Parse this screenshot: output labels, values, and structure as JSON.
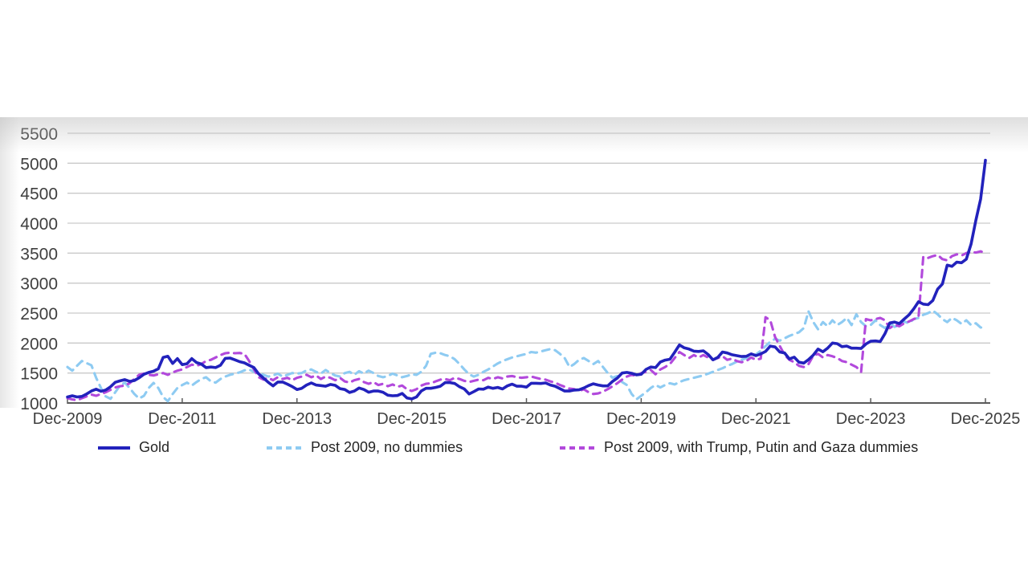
{
  "chart_data": {
    "type": "line",
    "title": "",
    "grid": "horizontal",
    "x_axis": {
      "start_label": "Dec-2009",
      "end_label": "Dec-2025",
      "frequency": "monthly",
      "tick_every_months": 24,
      "tick_labels": [
        "Dec-2009",
        "Dec-2011",
        "Dec-2013",
        "Dec-2015",
        "Dec-2017",
        "Dec-2019",
        "Dec-2021",
        "Dec-2023",
        "Dec-2025"
      ]
    },
    "y_axis": {
      "min": 1000,
      "max": 5500,
      "step": 500,
      "tick_labels": [
        "1000",
        "1500",
        "2000",
        "2500",
        "3000",
        "3500",
        "4000",
        "4500",
        "5000",
        "5500"
      ]
    },
    "legend": {
      "position": "bottom"
    },
    "series": [
      {
        "name": "Gold",
        "style": "solid",
        "color": "#2222BC",
        "values": [
          1100,
          1120,
          1100,
          1110,
          1150,
          1200,
          1230,
          1195,
          1215,
          1270,
          1345,
          1370,
          1390,
          1360,
          1375,
          1420,
          1480,
          1510,
          1530,
          1570,
          1760,
          1780,
          1660,
          1740,
          1640,
          1655,
          1740,
          1675,
          1650,
          1590,
          1600,
          1590,
          1630,
          1745,
          1750,
          1720,
          1690,
          1670,
          1630,
          1590,
          1485,
          1415,
          1345,
          1285,
          1350,
          1350,
          1315,
          1275,
          1225,
          1245,
          1300,
          1335,
          1300,
          1290,
          1280,
          1310,
          1295,
          1240,
          1225,
          1175,
          1200,
          1250,
          1225,
          1180,
          1200,
          1200,
          1180,
          1130,
          1120,
          1125,
          1160,
          1085,
          1068,
          1100,
          1200,
          1245,
          1245,
          1260,
          1280,
          1340,
          1340,
          1325,
          1270,
          1235,
          1150,
          1190,
          1235,
          1230,
          1265,
          1245,
          1260,
          1235,
          1285,
          1315,
          1280,
          1280,
          1265,
          1330,
          1330,
          1325,
          1335,
          1300,
          1280,
          1240,
          1200,
          1200,
          1215,
          1220,
          1250,
          1290,
          1320,
          1300,
          1285,
          1285,
          1360,
          1415,
          1500,
          1510,
          1495,
          1470,
          1480,
          1560,
          1600,
          1590,
          1685,
          1715,
          1730,
          1845,
          1970,
          1920,
          1900,
          1865,
          1860,
          1870,
          1810,
          1720,
          1760,
          1850,
          1835,
          1805,
          1790,
          1775,
          1780,
          1820,
          1790,
          1820,
          1860,
          1950,
          1935,
          1850,
          1835,
          1735,
          1765,
          1680,
          1665,
          1725,
          1800,
          1900,
          1855,
          1915,
          2000,
          1990,
          1940,
          1950,
          1915,
          1915,
          1910,
          1985,
          2030,
          2035,
          2025,
          2160,
          2335,
          2350,
          2325,
          2400,
          2470,
          2570,
          2690,
          2650,
          2640,
          2710,
          2900,
          2985,
          3300,
          3280,
          3350,
          3340,
          3400,
          3650,
          4050,
          4400,
          5050
        ]
      },
      {
        "name": "Post 2009, no dummies",
        "style": "dashed",
        "color": "#8ECBF2",
        "values": [
          1600,
          1540,
          1620,
          1700,
          1665,
          1630,
          1420,
          1250,
          1110,
          1070,
          1180,
          1290,
          1340,
          1250,
          1150,
          1075,
          1120,
          1250,
          1335,
          1250,
          1100,
          1030,
          1150,
          1250,
          1300,
          1340,
          1290,
          1350,
          1400,
          1430,
          1360,
          1340,
          1400,
          1440,
          1470,
          1490,
          1510,
          1545,
          1560,
          1520,
          1500,
          1470,
          1440,
          1460,
          1490,
          1440,
          1470,
          1500,
          1490,
          1500,
          1545,
          1560,
          1520,
          1490,
          1550,
          1500,
          1460,
          1440,
          1500,
          1520,
          1470,
          1530,
          1490,
          1540,
          1500,
          1450,
          1430,
          1450,
          1490,
          1460,
          1430,
          1450,
          1480,
          1470,
          1520,
          1620,
          1820,
          1840,
          1830,
          1800,
          1780,
          1730,
          1650,
          1560,
          1480,
          1440,
          1470,
          1520,
          1560,
          1610,
          1660,
          1700,
          1730,
          1760,
          1780,
          1800,
          1820,
          1850,
          1840,
          1860,
          1880,
          1900,
          1880,
          1820,
          1750,
          1600,
          1650,
          1720,
          1750,
          1700,
          1650,
          1700,
          1600,
          1500,
          1420,
          1450,
          1350,
          1300,
          1150,
          1060,
          1120,
          1180,
          1250,
          1300,
          1260,
          1300,
          1330,
          1310,
          1350,
          1380,
          1400,
          1420,
          1440,
          1460,
          1490,
          1520,
          1550,
          1580,
          1620,
          1650,
          1690,
          1720,
          1750,
          1790,
          1810,
          1870,
          1950,
          2020,
          2070,
          2040,
          2080,
          2120,
          2150,
          2180,
          2250,
          2530,
          2350,
          2230,
          2350,
          2280,
          2380,
          2300,
          2350,
          2420,
          2300,
          2480,
          2350,
          2280,
          2300,
          2380,
          2300,
          2250,
          2330,
          2270,
          2300,
          2360,
          2330,
          2400,
          2420,
          2470,
          2500,
          2540,
          2480,
          2400,
          2350,
          2420,
          2380,
          2320,
          2380,
          2300,
          2330,
          2260,
          2250
        ]
      },
      {
        "name": "Post 2009, with Trump, Putin and Gaza dummies",
        "style": "dashed",
        "color": "#B249DC",
        "values": [
          1080,
          1060,
          1045,
          1080,
          1110,
          1140,
          1120,
          1150,
          1180,
          1220,
          1260,
          1280,
          1290,
          1330,
          1400,
          1470,
          1490,
          1470,
          1460,
          1480,
          1500,
          1470,
          1510,
          1540,
          1560,
          1600,
          1640,
          1620,
          1650,
          1700,
          1720,
          1760,
          1800,
          1830,
          1840,
          1830,
          1835,
          1820,
          1700,
          1560,
          1430,
          1390,
          1420,
          1380,
          1430,
          1400,
          1420,
          1380,
          1420,
          1440,
          1470,
          1430,
          1460,
          1400,
          1440,
          1420,
          1380,
          1420,
          1360,
          1340,
          1380,
          1400,
          1350,
          1320,
          1350,
          1300,
          1320,
          1280,
          1310,
          1270,
          1290,
          1230,
          1200,
          1230,
          1290,
          1320,
          1330,
          1360,
          1390,
          1400,
          1380,
          1420,
          1400,
          1370,
          1350,
          1370,
          1390,
          1380,
          1420,
          1400,
          1430,
          1410,
          1440,
          1450,
          1430,
          1420,
          1430,
          1440,
          1420,
          1400,
          1390,
          1360,
          1340,
          1300,
          1270,
          1240,
          1230,
          1200,
          1230,
          1180,
          1150,
          1160,
          1190,
          1230,
          1280,
          1330,
          1390,
          1440,
          1470,
          1450,
          1500,
          1520,
          1550,
          1480,
          1560,
          1600,
          1650,
          1750,
          1850,
          1800,
          1750,
          1800,
          1760,
          1800,
          1760,
          1720,
          1750,
          1780,
          1720,
          1740,
          1700,
          1680,
          1700,
          1760,
          1720,
          1740,
          2430,
          2380,
          2100,
          1950,
          1800,
          1720,
          1680,
          1620,
          1600,
          1650,
          1790,
          1820,
          1760,
          1800,
          1780,
          1750,
          1700,
          1680,
          1640,
          1600,
          1520,
          2400,
          2380,
          2400,
          2420,
          2380,
          2250,
          2300,
          2280,
          2330,
          2360,
          2400,
          2430,
          3440,
          3420,
          3450,
          3470,
          3400,
          3380,
          3450,
          3480,
          3460,
          3500,
          3520,
          3510,
          3530,
          3500
        ]
      }
    ],
    "style_hints": {
      "grid_color": "#C9C9C9",
      "axis_color": "#5A5A5A",
      "label_color": "#3F3F3F"
    }
  }
}
